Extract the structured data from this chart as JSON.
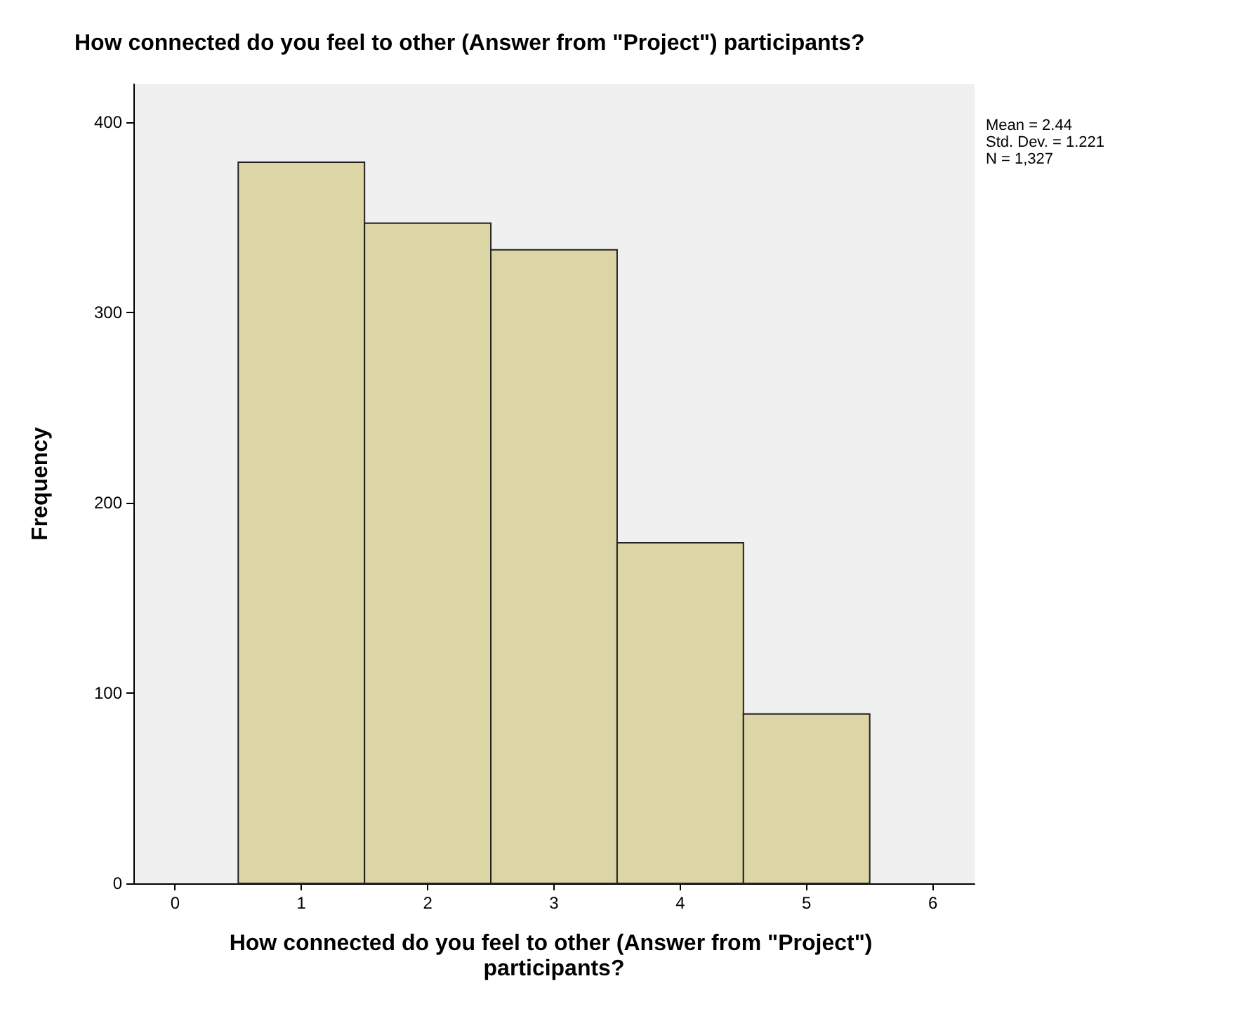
{
  "chart_data": {
    "type": "histogram",
    "title": "How connected do you feel to other (Answer from \"Project\") participants?",
    "xlabel": "How connected do you feel to other (Answer from \"Project\") participants?",
    "ylabel": "Frequency",
    "bins": [
      0.5,
      1.5,
      2.5,
      3.5,
      4.5,
      5.5
    ],
    "values": [
      379,
      347,
      333,
      179,
      89
    ],
    "color": "#dcd5a5",
    "xlim": [
      -0.33,
      6.33
    ],
    "xticks": [
      0,
      1,
      2,
      3,
      4,
      5,
      6
    ],
    "ylim": [
      0,
      420
    ],
    "yticks": [
      0,
      100,
      200,
      300,
      400
    ],
    "grid": false,
    "annotations": [
      "Mean = 2.44",
      "Std. Dev. = 1.221",
      "N = 1,327"
    ]
  }
}
